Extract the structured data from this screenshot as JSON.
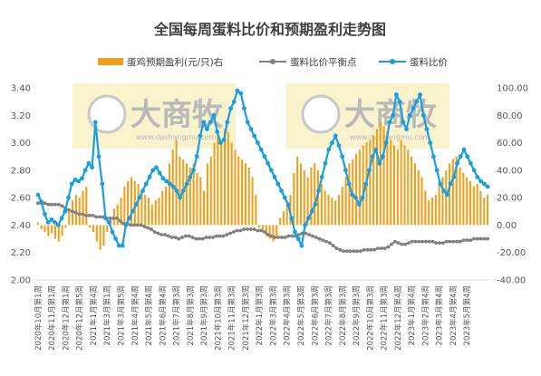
{
  "chart_data": {
    "type": "bar",
    "title": "全国每周蛋料比价和预期盈利走势图",
    "xlabel": "",
    "ylabel": "",
    "ylim_left": [
      2.0,
      3.4
    ],
    "ylim_right": [
      -40.0,
      100.0
    ],
    "left_ticks": [
      "2.00",
      "2.20",
      "2.40",
      "2.60",
      "2.80",
      "3.00",
      "3.20",
      "3.40"
    ],
    "right_ticks": [
      "-40.00",
      "-20.00",
      "0.00",
      "20.00",
      "40.00",
      "60.00",
      "80.00",
      "100.00"
    ],
    "grid": false,
    "legend_position": "top",
    "x_tick_labels": [
      "2020年10月第1周",
      "2020年11月第1周",
      "2020年12月第1周",
      "2020年12月第5周",
      "2021年1月第4周",
      "2021年3月第1周",
      "2021年3月第5周",
      "2021年4月第4周",
      "2021年5月第4周",
      "2021年6月第4周",
      "2021年7月第3周",
      "2021年8月第3周",
      "2021年9月第3周",
      "2021年10月第3周",
      "2021年11月第3周",
      "2021年12月第3周",
      "2022年1月第3周",
      "2022年3月第3周",
      "2022年4月第3周",
      "2022年5月第3周",
      "2022年6月第3周",
      "2022年7月第3周",
      "2022年8月第3周",
      "2022年9月第3周",
      "2022年10月第3周",
      "2022年11月第3周",
      "2022年12月第4周",
      "2023年1月第4周",
      "2023年2月第4周",
      "2023年3月第4周",
      "2023年4月第4周",
      "2023年5月第4周"
    ],
    "tick_every": 4,
    "series": [
      {
        "name": "蛋鸡预期盈利(元/只)右",
        "kind": "bar",
        "axis": "right",
        "color": "#f0a01f",
        "values": [
          2,
          -3,
          -5,
          -8,
          -6,
          -10,
          -12,
          -8,
          -2,
          12,
          18,
          22,
          20,
          25,
          28,
          -2,
          -5,
          -12,
          -18,
          -15,
          -5,
          5,
          12,
          15,
          20,
          28,
          32,
          35,
          32,
          30,
          25,
          22,
          20,
          15,
          18,
          20,
          25,
          28,
          45,
          55,
          62,
          50,
          48,
          45,
          42,
          45,
          38,
          35,
          25,
          45,
          50,
          60,
          65,
          62,
          70,
          68,
          60,
          55,
          50,
          48,
          45,
          42,
          35,
          22,
          -2,
          -5,
          -8,
          -10,
          -12,
          -8,
          5,
          10,
          15,
          22,
          38,
          50,
          45,
          40,
          35,
          42,
          45,
          40,
          30,
          25,
          22,
          20,
          18,
          22,
          28,
          35,
          45,
          48,
          52,
          55,
          58,
          60,
          62,
          65,
          70,
          75,
          72,
          68,
          62,
          58,
          55,
          62,
          58,
          55,
          50,
          45,
          40,
          35,
          25,
          18,
          20,
          22,
          30,
          35,
          40,
          45,
          48,
          50,
          42,
          38,
          35,
          32,
          28,
          30,
          25,
          20,
          22
        ]
      },
      {
        "name": "蛋料比价平衡点",
        "kind": "line",
        "axis": "left",
        "color": "#808080",
        "values": [
          2.56,
          2.56,
          2.56,
          2.55,
          2.55,
          2.55,
          2.55,
          2.54,
          2.52,
          2.51,
          2.5,
          2.49,
          2.48,
          2.48,
          2.47,
          2.47,
          2.47,
          2.46,
          2.46,
          2.46,
          2.45,
          2.45,
          2.45,
          2.45,
          2.43,
          2.41,
          2.41,
          2.4,
          2.4,
          2.4,
          2.4,
          2.39,
          2.38,
          2.37,
          2.35,
          2.34,
          2.33,
          2.33,
          2.32,
          2.31,
          2.31,
          2.3,
          2.31,
          2.32,
          2.32,
          2.31,
          2.3,
          2.3,
          2.3,
          2.31,
          2.31,
          2.31,
          2.32,
          2.32,
          2.32,
          2.33,
          2.34,
          2.35,
          2.36,
          2.36,
          2.37,
          2.37,
          2.37,
          2.37,
          2.36,
          2.36,
          2.35,
          2.33,
          2.32,
          2.31,
          2.31,
          2.31,
          2.31,
          2.32,
          2.32,
          2.32,
          2.33,
          2.34,
          2.34,
          2.33,
          2.32,
          2.31,
          2.3,
          2.29,
          2.28,
          2.27,
          2.25,
          2.23,
          2.22,
          2.21,
          2.21,
          2.21,
          2.21,
          2.21,
          2.21,
          2.22,
          2.22,
          2.22,
          2.22,
          2.23,
          2.23,
          2.23,
          2.24,
          2.26,
          2.28,
          2.27,
          2.26,
          2.26,
          2.27,
          2.28,
          2.28,
          2.28,
          2.28,
          2.28,
          2.28,
          2.28,
          2.27,
          2.27,
          2.27,
          2.28,
          2.28,
          2.28,
          2.28,
          2.28,
          2.29,
          2.29,
          2.29,
          2.3,
          2.3,
          2.3,
          2.3,
          2.3
        ]
      },
      {
        "name": "蛋料比价",
        "kind": "line",
        "axis": "left",
        "color": "#1a9ee0",
        "values": [
          2.62,
          2.57,
          2.48,
          2.42,
          2.44,
          2.42,
          2.4,
          2.45,
          2.5,
          2.6,
          2.7,
          2.73,
          2.72,
          2.74,
          2.8,
          2.85,
          2.82,
          3.15,
          2.9,
          2.7,
          2.45,
          2.42,
          2.35,
          2.3,
          2.25,
          2.25,
          2.4,
          2.45,
          2.5,
          2.55,
          2.6,
          2.65,
          2.7,
          2.75,
          2.8,
          2.82,
          2.78,
          2.74,
          2.72,
          2.7,
          2.68,
          2.65,
          2.6,
          2.65,
          2.7,
          2.75,
          2.8,
          2.9,
          3.05,
          3.15,
          3.1,
          3.15,
          3.2,
          3.08,
          3.0,
          3.02,
          3.15,
          3.25,
          3.3,
          3.38,
          3.36,
          3.25,
          3.15,
          3.1,
          3.05,
          3.0,
          2.95,
          2.9,
          2.85,
          2.8,
          2.75,
          2.7,
          2.65,
          2.6,
          2.55,
          2.45,
          2.35,
          2.3,
          2.25,
          2.4,
          2.45,
          2.5,
          2.55,
          2.65,
          2.75,
          2.85,
          2.95,
          3.0,
          3.05,
          2.98,
          2.9,
          2.8,
          2.7,
          2.62,
          2.6,
          2.55,
          2.6,
          2.7,
          2.8,
          2.9,
          2.95,
          2.85,
          2.9,
          3.0,
          3.15,
          3.2,
          3.35,
          3.3,
          3.15,
          3.1,
          3.2,
          3.25,
          3.3,
          3.35,
          3.2,
          3.1,
          3.0,
          2.9,
          2.8,
          2.7,
          2.65,
          2.62,
          2.7,
          2.75,
          2.85,
          2.9,
          2.95,
          2.9,
          2.85,
          2.8,
          2.75,
          2.72,
          2.7,
          2.68
        ]
      }
    ]
  },
  "watermarks": [
    {
      "brand": "大商牧",
      "sub": "www.dashangmu.com"
    },
    {
      "brand": "大商牧",
      "sub": "www.dashangmu.com"
    },
    {
      "brand": "大商牧",
      "sub": "www.dashangmu.com"
    }
  ]
}
